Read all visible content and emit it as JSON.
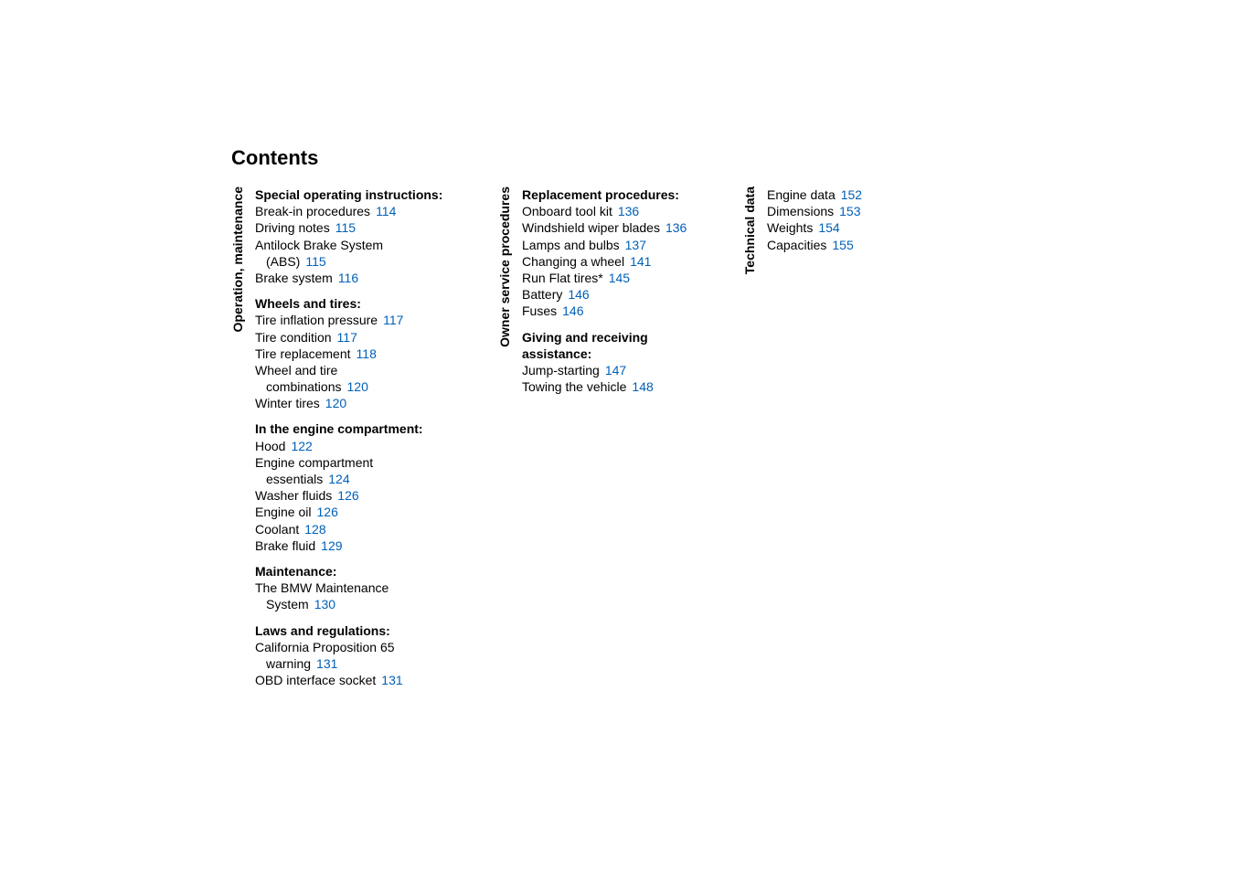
{
  "page_title": "Contents",
  "link_color": "#0060b8",
  "text_color": "#000000",
  "columns": [
    {
      "label": "Operation, maintenance",
      "sections": [
        {
          "heading": "Special operating instructions:",
          "items": [
            {
              "lines": [
                "Break-in procedures"
              ],
              "page": "114"
            },
            {
              "lines": [
                "Driving notes"
              ],
              "page": "115"
            },
            {
              "lines": [
                "Antilock Brake System",
                "(ABS)"
              ],
              "page": "115"
            },
            {
              "lines": [
                "Brake system"
              ],
              "page": "116"
            }
          ]
        },
        {
          "heading": "Wheels and tires:",
          "items": [
            {
              "lines": [
                "Tire inflation pressure"
              ],
              "page": "117"
            },
            {
              "lines": [
                "Tire condition"
              ],
              "page": "117"
            },
            {
              "lines": [
                "Tire replacement"
              ],
              "page": "118"
            },
            {
              "lines": [
                "Wheel and tire",
                "combinations"
              ],
              "page": "120"
            },
            {
              "lines": [
                "Winter tires"
              ],
              "page": "120"
            }
          ]
        },
        {
          "heading": "In the engine compartment:",
          "items": [
            {
              "lines": [
                "Hood"
              ],
              "page": "122"
            },
            {
              "lines": [
                "Engine compartment",
                "essentials"
              ],
              "page": "124"
            },
            {
              "lines": [
                "Washer fluids"
              ],
              "page": "126"
            },
            {
              "lines": [
                "Engine oil"
              ],
              "page": "126"
            },
            {
              "lines": [
                "Coolant"
              ],
              "page": "128"
            },
            {
              "lines": [
                "Brake fluid"
              ],
              "page": "129"
            }
          ]
        },
        {
          "heading": "Maintenance:",
          "items": [
            {
              "lines": [
                "The BMW Maintenance",
                "System"
              ],
              "page": "130"
            }
          ]
        },
        {
          "heading": "Laws and regulations:",
          "items": [
            {
              "lines": [
                "California Proposition 65",
                "warning"
              ],
              "page": "131"
            },
            {
              "lines": [
                "OBD interface socket"
              ],
              "page": "131"
            }
          ]
        }
      ]
    },
    {
      "label": "Owner service procedures",
      "sections": [
        {
          "heading": "Replacement procedures:",
          "items": [
            {
              "lines": [
                "Onboard tool kit"
              ],
              "page": "136"
            },
            {
              "lines": [
                "Windshield wiper blades"
              ],
              "page": "136"
            },
            {
              "lines": [
                "Lamps and bulbs"
              ],
              "page": "137"
            },
            {
              "lines": [
                "Changing a wheel"
              ],
              "page": "141"
            },
            {
              "lines": [
                "Run Flat tires*"
              ],
              "page": "145"
            },
            {
              "lines": [
                "Battery"
              ],
              "page": "146"
            },
            {
              "lines": [
                "Fuses"
              ],
              "page": "146"
            }
          ]
        },
        {
          "heading": "Giving and receiving assistance:",
          "items": [
            {
              "lines": [
                "Jump-starting"
              ],
              "page": "147"
            },
            {
              "lines": [
                "Towing the vehicle"
              ],
              "page": "148"
            }
          ]
        }
      ]
    },
    {
      "label": "Technical data",
      "sections": [
        {
          "heading": null,
          "items": [
            {
              "lines": [
                "Engine data"
              ],
              "page": "152"
            },
            {
              "lines": [
                "Dimensions"
              ],
              "page": "153"
            },
            {
              "lines": [
                "Weights"
              ],
              "page": "154"
            },
            {
              "lines": [
                "Capacities"
              ],
              "page": "155"
            }
          ]
        }
      ]
    }
  ]
}
